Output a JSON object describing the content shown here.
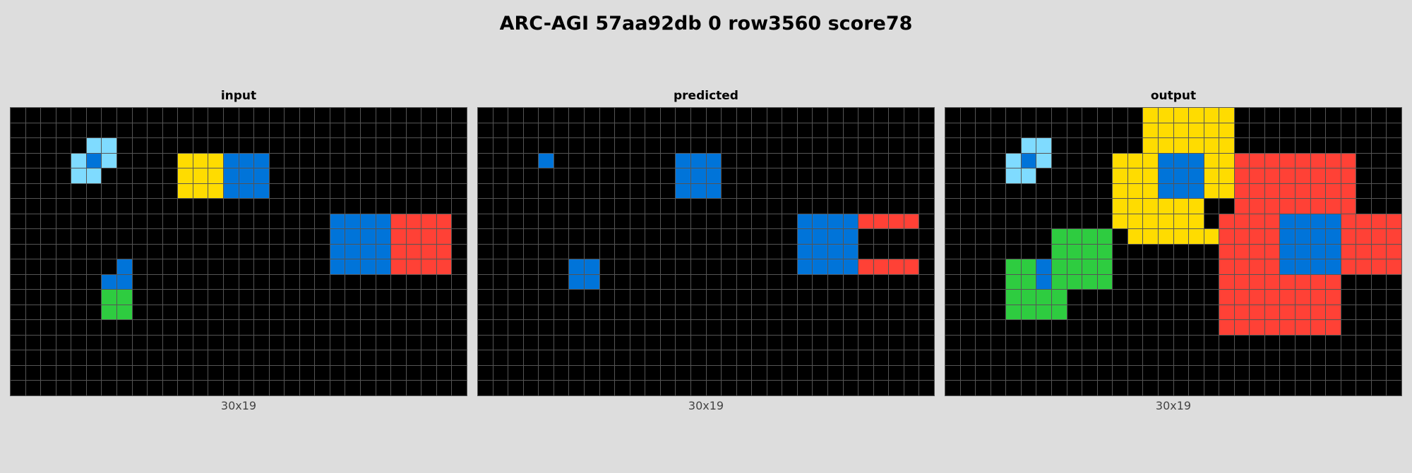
{
  "title": "ARC-AGI 57aa92db 0 row3560 score78",
  "palette": {
    "0": "#000000",
    "1": "#0074d9",
    "3": "#2ecc40",
    "4": "#ffdc00",
    "2": "#ff4136",
    "8": "#7fdbff"
  },
  "panels": [
    {
      "name": "input",
      "size_label": "30x19",
      "grid": [
        "000000000000000000000000000000",
        "000000000000000000000000000000",
        "000008800000000000000000000000",
        "000081800004441110000000000000",
        "000088000004441110000000000000",
        "000000000004441110000000000000",
        "000000000000000000000000000000",
        "000000000000000000000111122220",
        "000000000000000000000111122220",
        "000000000000000000000111122220",
        "000000010000000000000111122220",
        "000000110000000000000000000000",
        "000000330000000000000000000000",
        "000000330000000000000000000000",
        "000000000000000000000000000000",
        "000000000000000000000000000000",
        "000000000000000000000000000000",
        "000000000000000000000000000000",
        "000000000000000000000000000000"
      ]
    },
    {
      "name": "predicted",
      "size_label": "30x19",
      "grid": [
        "000000000000000000000000000000",
        "000000000000000000000000000000",
        "000000000000000000000000000000",
        "000010000000011100000000000000",
        "000000000000011100000000000000",
        "000000000000011100000000000000",
        "000000000000000000000000000000",
        "000000000000000000000111122220",
        "000000000000000000000111100000",
        "000000000000000000000111100000",
        "000000110000000000000111122220",
        "000000110000000000000000000000",
        "000000000000000000000000000000",
        "000000000000000000000000000000",
        "000000000000000000000000000000",
        "000000000000000000000000000000",
        "000000000000000000000000000000",
        "000000000000000000000000000000",
        "000000000000000000000000000000"
      ]
    },
    {
      "name": "output",
      "size_label": "30x19",
      "grid": [
        "000000000000044444400000000000",
        "000000000000044444400000000000",
        "000008800000044444400000000000",
        "000081800004441114422222222000",
        "000088000004441114422222222000",
        "000000000004441114422222222000",
        "000000000004444440022222222000",
        "000000000004444440222211112222",
        "000000033330444444222211112222",
        "000000033330000000222211112222",
        "000033133330000000222211112222",
        "000033133330000000222222220000",
        "000033330000000000222222220000",
        "000033330000000000222222220000",
        "000000000000000000222222220000",
        "000000000000000000000000000000",
        "000000000000000000000000000000",
        "000000000000000000000000000000",
        "000000000000000000000000000000"
      ]
    }
  ]
}
